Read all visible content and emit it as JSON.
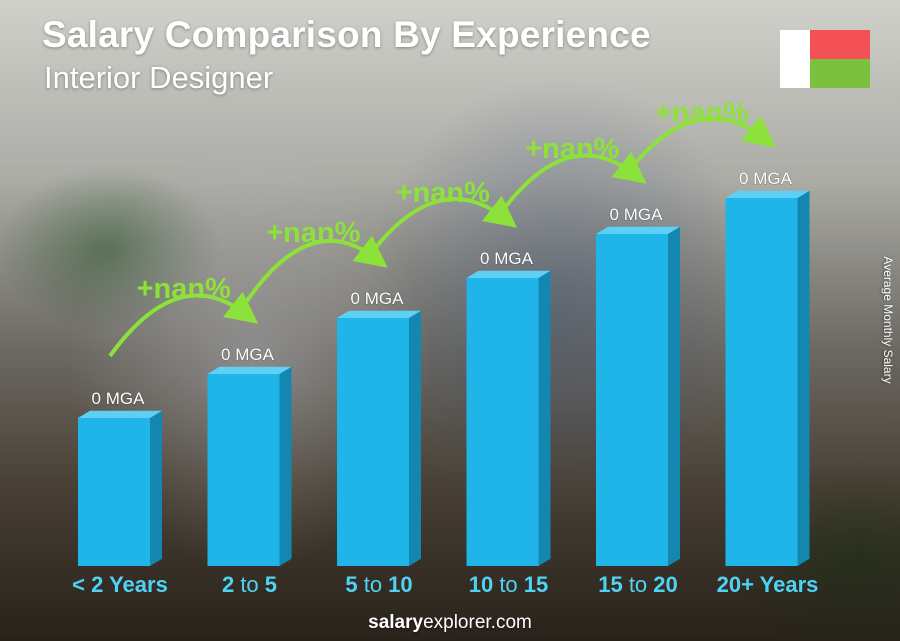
{
  "header": {
    "title": "Salary Comparison By Experience",
    "subtitle": "Interior Designer"
  },
  "flag": {
    "colors": [
      "#ffffff",
      "#f45157",
      "#7bc13f"
    ]
  },
  "y_axis_label": "Average Monthly Salary",
  "footer": {
    "brand_bold": "salary",
    "brand_rest": "explorer.com"
  },
  "colors": {
    "bar_front": "#1fb5e8",
    "bar_side": "#1487b0",
    "bar_top": "#5fd0f5",
    "increase": "#8de23a",
    "category": "#4fd3f5"
  },
  "chart_data": {
    "type": "bar",
    "categories": [
      {
        "bold": "< 2 Years",
        "mid": "",
        "end": ""
      },
      {
        "bold": "2",
        "mid": " to ",
        "end": "5"
      },
      {
        "bold": "5",
        "mid": " to ",
        "end": "10"
      },
      {
        "bold": "10",
        "mid": " to ",
        "end": "15"
      },
      {
        "bold": "15",
        "mid": " to ",
        "end": "20"
      },
      {
        "bold": "20+ Years",
        "mid": "",
        "end": ""
      }
    ],
    "values": [
      0,
      0,
      0,
      0,
      0,
      0
    ],
    "value_labels": [
      "0 MGA",
      "0 MGA",
      "0 MGA",
      "0 MGA",
      "0 MGA",
      "0 MGA"
    ],
    "relative_bar_heights": [
      0.37,
      0.48,
      0.62,
      0.72,
      0.83,
      0.92
    ],
    "increase_labels": [
      "+nan%",
      "+nan%",
      "+nan%",
      "+nan%",
      "+nan%"
    ],
    "ylabel": "Average Monthly Salary"
  }
}
